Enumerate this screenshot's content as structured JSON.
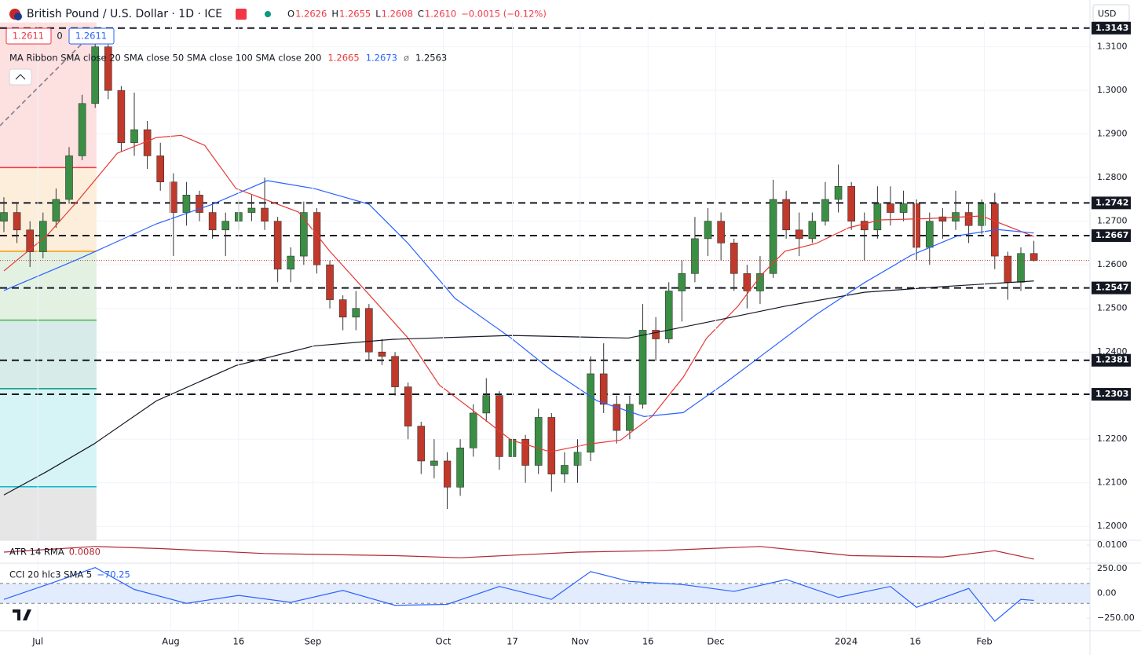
{
  "toolbar": {
    "symbol": "British Pound / U.S. Dollar · 1D · ICE",
    "ohlc": [
      {
        "label": "O",
        "value": "1.2626"
      },
      {
        "label": "H",
        "value": "1.2655"
      },
      {
        "label": "L",
        "value": "1.2608"
      },
      {
        "label": "C",
        "value": "1.2610"
      }
    ],
    "change": "−0.0015 (−0.12%)",
    "currency": "USD",
    "buttons": [
      "1.2611",
      "0",
      "1.2611"
    ]
  },
  "chart_data": [
    {
      "type": "candlestick",
      "legend_title": "MA Ribbon SMA close 20 SMA close 50 SMA close 100 SMA close 200",
      "up_color": "#3b8f45",
      "down_color": "#c0392b",
      "ohlc": [
        [
          1.27,
          1.2755,
          1.2675,
          1.272
        ],
        [
          1.272,
          1.274,
          1.265,
          1.268
        ],
        [
          1.268,
          1.27,
          1.2595,
          1.263
        ],
        [
          1.263,
          1.272,
          1.2615,
          1.27
        ],
        [
          1.27,
          1.2775,
          1.2685,
          1.275
        ],
        [
          1.275,
          1.287,
          1.274,
          1.285
        ],
        [
          1.285,
          1.299,
          1.284,
          1.297
        ],
        [
          1.297,
          1.3143,
          1.296,
          1.31
        ],
        [
          1.31,
          1.311,
          1.298,
          1.3
        ],
        [
          1.3,
          1.301,
          1.286,
          1.288
        ],
        [
          1.288,
          1.2995,
          1.285,
          1.291
        ],
        [
          1.291,
          1.293,
          1.282,
          1.285
        ],
        [
          1.285,
          1.288,
          1.277,
          1.279
        ],
        [
          1.279,
          1.281,
          1.262,
          1.272
        ],
        [
          1.272,
          1.279,
          1.269,
          1.276
        ],
        [
          1.276,
          1.277,
          1.27,
          1.272
        ],
        [
          1.272,
          1.274,
          1.266,
          1.268
        ],
        [
          1.268,
          1.272,
          1.262,
          1.27
        ],
        [
          1.27,
          1.275,
          1.268,
          1.272
        ],
        [
          1.272,
          1.276,
          1.27,
          1.273
        ],
        [
          1.273,
          1.28,
          1.268,
          1.27
        ],
        [
          1.27,
          1.271,
          1.256,
          1.259
        ],
        [
          1.259,
          1.264,
          1.256,
          1.262
        ],
        [
          1.262,
          1.2745,
          1.26,
          1.272
        ],
        [
          1.272,
          1.273,
          1.258,
          1.26
        ],
        [
          1.26,
          1.261,
          1.25,
          1.252
        ],
        [
          1.252,
          1.253,
          1.245,
          1.248
        ],
        [
          1.248,
          1.254,
          1.245,
          1.25
        ],
        [
          1.25,
          1.251,
          1.238,
          1.24
        ],
        [
          1.24,
          1.243,
          1.237,
          1.239
        ],
        [
          1.239,
          1.24,
          1.23,
          1.232
        ],
        [
          1.232,
          1.233,
          1.22,
          1.223
        ],
        [
          1.223,
          1.224,
          1.212,
          1.215
        ],
        [
          1.214,
          1.22,
          1.211,
          1.215
        ],
        [
          1.215,
          1.217,
          1.204,
          1.209
        ],
        [
          1.209,
          1.22,
          1.207,
          1.218
        ],
        [
          1.218,
          1.228,
          1.216,
          1.226
        ],
        [
          1.226,
          1.234,
          1.224,
          1.23
        ],
        [
          1.23,
          1.231,
          1.213,
          1.216
        ],
        [
          1.216,
          1.223,
          1.212,
          1.22
        ],
        [
          1.22,
          1.221,
          1.21,
          1.214
        ],
        [
          1.214,
          1.227,
          1.212,
          1.225
        ],
        [
          1.225,
          1.226,
          1.208,
          1.212
        ],
        [
          1.212,
          1.217,
          1.21,
          1.214
        ],
        [
          1.214,
          1.22,
          1.21,
          1.217
        ],
        [
          1.217,
          1.239,
          1.215,
          1.235
        ],
        [
          1.235,
          1.242,
          1.226,
          1.228
        ],
        [
          1.228,
          1.23,
          1.219,
          1.222
        ],
        [
          1.222,
          1.23,
          1.22,
          1.228
        ],
        [
          1.228,
          1.251,
          1.227,
          1.245
        ],
        [
          1.245,
          1.248,
          1.238,
          1.243
        ],
        [
          1.243,
          1.256,
          1.242,
          1.254
        ],
        [
          1.254,
          1.261,
          1.247,
          1.258
        ],
        [
          1.258,
          1.271,
          1.256,
          1.266
        ],
        [
          1.266,
          1.273,
          1.262,
          1.27
        ],
        [
          1.27,
          1.272,
          1.261,
          1.265
        ],
        [
          1.265,
          1.266,
          1.254,
          1.258
        ],
        [
          1.258,
          1.26,
          1.25,
          1.254
        ],
        [
          1.254,
          1.262,
          1.251,
          1.258
        ],
        [
          1.258,
          1.2795,
          1.257,
          1.275
        ],
        [
          1.275,
          1.277,
          1.266,
          1.268
        ],
        [
          1.268,
          1.272,
          1.262,
          1.266
        ],
        [
          1.266,
          1.272,
          1.265,
          1.27
        ],
        [
          1.27,
          1.279,
          1.269,
          1.275
        ],
        [
          1.275,
          1.283,
          1.272,
          1.278
        ],
        [
          1.278,
          1.279,
          1.268,
          1.27
        ],
        [
          1.27,
          1.272,
          1.261,
          1.268
        ],
        [
          1.268,
          1.278,
          1.266,
          1.274
        ],
        [
          1.274,
          1.278,
          1.269,
          1.272
        ],
        [
          1.272,
          1.277,
          1.27,
          1.274
        ],
        [
          1.274,
          1.275,
          1.261,
          1.264
        ],
        [
          1.264,
          1.272,
          1.26,
          1.27
        ],
        [
          1.271,
          1.273,
          1.266,
          1.27
        ],
        [
          1.27,
          1.277,
          1.268,
          1.272
        ],
        [
          1.272,
          1.274,
          1.265,
          1.269
        ],
        [
          1.269,
          1.275,
          1.267,
          1.274
        ],
        [
          1.274,
          1.2765,
          1.259,
          1.262
        ],
        [
          1.262,
          1.263,
          1.252,
          1.256
        ],
        [
          1.256,
          1.264,
          1.254,
          1.2626
        ],
        [
          1.2626,
          1.2655,
          1.2608,
          1.261
        ]
      ],
      "moving_averages": [
        {
          "color": "#e53935",
          "legend_value": "1.2665",
          "x": [
            0,
            3.3,
            5.7,
            8.7,
            11.7,
            13.6,
            15.4,
            17.8,
            20.2,
            22.6,
            25,
            28,
            31,
            33.4,
            35.8,
            38.9,
            41.9,
            44.9,
            47.3,
            49.7,
            52.1,
            53.9,
            56.3,
            58.1,
            59.9,
            62.3,
            64.8,
            67.2,
            70.8,
            75,
            79
          ],
          "values": [
            1.2586,
            1.2667,
            1.2748,
            1.2856,
            1.2892,
            1.2897,
            1.2874,
            1.2775,
            1.2748,
            1.2721,
            1.2631,
            1.2532,
            1.2432,
            1.2324,
            1.227,
            1.2198,
            1.2171,
            1.2189,
            1.2198,
            1.2252,
            1.2342,
            1.2432,
            1.2505,
            1.2577,
            1.2631,
            1.2649,
            1.2685,
            1.2703,
            1.2706,
            1.2712,
            1.2665
          ]
        },
        {
          "color": "#2962ff",
          "legend_value": "1.2673",
          "x": [
            0,
            5.7,
            11.7,
            16,
            20.2,
            23.8,
            28,
            31,
            34.6,
            38.9,
            41.9,
            45.5,
            49.1,
            52.1,
            55.1,
            58.7,
            62.3,
            66,
            69.6,
            73.2,
            76.2,
            79
          ],
          "values": [
            1.2541,
            1.2613,
            1.2694,
            1.2739,
            1.2793,
            1.2775,
            1.2739,
            1.2649,
            1.2523,
            1.2432,
            1.236,
            1.2288,
            1.2252,
            1.2261,
            1.2324,
            1.2405,
            1.2486,
            1.2559,
            1.2622,
            1.2667,
            1.2681,
            1.2673
          ]
        },
        {
          "color": "#787b86",
          "legend_value": "ø"
        },
        {
          "color": "#131722",
          "legend_value": "1.2563",
          "x": [
            0,
            3.3,
            6.9,
            11.7,
            17.8,
            23.8,
            29.8,
            38.9,
            47.9,
            53.9,
            59.9,
            66,
            72,
            79
          ],
          "values": [
            1.2072,
            1.2126,
            1.2189,
            1.2288,
            1.2369,
            1.2414,
            1.2429,
            1.2438,
            1.2432,
            1.2468,
            1.2505,
            1.2537,
            1.255,
            1.2563
          ]
        }
      ],
      "levels": [
        {
          "value": 1.3143,
          "label": "1.3143"
        },
        {
          "value": 1.2742,
          "label": "1.2742"
        },
        {
          "value": 1.2667,
          "label": "1.2667"
        },
        {
          "value": 1.2547,
          "label": "1.2547"
        },
        {
          "value": 1.2381,
          "label": "1.2381"
        },
        {
          "value": 1.2303,
          "label": "1.2303"
        }
      ],
      "fib_levels": [
        {
          "value": 1.2823,
          "color": "#f23645"
        },
        {
          "value": 1.2631,
          "color": "#ff9800"
        },
        {
          "value": 1.2473,
          "color": "#4caf50"
        },
        {
          "value": 1.2316,
          "color": "#089981"
        },
        {
          "value": 1.2091,
          "color": "#00bcd4"
        }
      ],
      "xlim": [
        -0.3,
        83.3
      ],
      "ylim": [
        1.1968,
        1.3157
      ],
      "xticks": [
        {
          "value": 2.6,
          "label": "Jul"
        },
        {
          "value": 12.8,
          "label": "Aug"
        },
        {
          "value": 18,
          "label": "16"
        },
        {
          "value": 23.7,
          "label": "Sep"
        },
        {
          "value": 33.7,
          "label": "Oct"
        },
        {
          "value": 39,
          "label": "17"
        },
        {
          "value": 44.2,
          "label": "Nov"
        },
        {
          "value": 49.4,
          "label": "16"
        },
        {
          "value": 54.6,
          "label": "Dec"
        },
        {
          "value": 64.6,
          "label": "2024"
        },
        {
          "value": 69.9,
          "label": "16"
        },
        {
          "value": 75.2,
          "label": "Feb"
        }
      ],
      "yticks": [
        {
          "value": 1.31,
          "label": "1.3100"
        },
        {
          "value": 1.3,
          "label": "1.3000"
        },
        {
          "value": 1.29,
          "label": "1.2900"
        },
        {
          "value": 1.28,
          "label": "1.2800"
        },
        {
          "value": 1.27,
          "label": "1.2700"
        },
        {
          "value": 1.26,
          "label": "1.2600"
        },
        {
          "value": 1.25,
          "label": "1.2500"
        },
        {
          "value": 1.24,
          "label": "1.2400"
        },
        {
          "value": 1.23,
          "label": "1.2300"
        },
        {
          "value": 1.22,
          "label": "1.2200"
        },
        {
          "value": 1.21,
          "label": "1.2100"
        },
        {
          "value": 1.2,
          "label": "1.2000"
        }
      ],
      "grid": true
    },
    {
      "type": "line",
      "title": "ATR 14 RMA",
      "value_label": "0.0080",
      "color": "#b22833",
      "x": [
        0,
        7,
        12,
        20,
        30,
        35,
        44,
        50,
        58,
        65,
        72,
        76,
        79
      ],
      "values": [
        0.009,
        0.0098,
        0.0095,
        0.0088,
        0.0085,
        0.0082,
        0.009,
        0.0092,
        0.0098,
        0.0085,
        0.0083,
        0.0092,
        0.008
      ],
      "xlim": [
        -0.3,
        83.3
      ],
      "ylim": [
        0.00744,
        0.01067
      ],
      "yticks": [
        {
          "value": 0.01,
          "label": "0.0100"
        }
      ]
    },
    {
      "type": "line",
      "title": "CCI 20 hlc3 SMA 5",
      "value_label": "−70.25",
      "color": "#2962ff",
      "band": [
        -100,
        100
      ],
      "x": [
        0,
        4,
        7,
        10,
        14,
        18,
        22,
        26,
        30,
        34,
        38,
        42,
        45,
        48,
        52,
        56,
        60,
        64,
        68,
        70,
        74,
        76,
        78,
        79
      ],
      "values": [
        -60,
        120,
        260,
        40,
        -100,
        -20,
        -90,
        30,
        -120,
        -110,
        70,
        -60,
        220,
        120,
        90,
        20,
        140,
        -40,
        70,
        -140,
        50,
        -280,
        -60,
        -70.25
      ],
      "xlim": [
        -0.3,
        83.3
      ],
      "ylim": [
        -375,
        305
      ],
      "yticks": [
        {
          "value": 250,
          "label": "250.00"
        },
        {
          "value": 0,
          "label": "0.00"
        },
        {
          "value": -250,
          "label": "−250.00"
        }
      ]
    }
  ]
}
